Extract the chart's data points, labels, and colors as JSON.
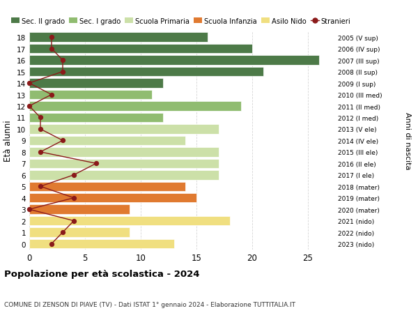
{
  "ages": [
    0,
    1,
    2,
    3,
    4,
    5,
    6,
    7,
    8,
    9,
    10,
    11,
    12,
    13,
    14,
    15,
    16,
    17,
    18
  ],
  "years": [
    "2023 (nido)",
    "2022 (nido)",
    "2021 (nido)",
    "2020 (mater)",
    "2019 (mater)",
    "2018 (mater)",
    "2017 (I ele)",
    "2016 (II ele)",
    "2015 (III ele)",
    "2014 (IV ele)",
    "2013 (V ele)",
    "2012 (I med)",
    "2011 (II med)",
    "2010 (III med)",
    "2009 (I sup)",
    "2008 (II sup)",
    "2007 (III sup)",
    "2006 (IV sup)",
    "2005 (V sup)"
  ],
  "bar_values": [
    13,
    9,
    18,
    9,
    15,
    14,
    17,
    17,
    17,
    14,
    17,
    12,
    19,
    11,
    12,
    21,
    26,
    20,
    16
  ],
  "bar_colors": [
    "#f0df80",
    "#f0df80",
    "#f0df80",
    "#e07a30",
    "#e07a30",
    "#e07a30",
    "#cce0a8",
    "#cce0a8",
    "#cce0a8",
    "#cce0a8",
    "#cce0a8",
    "#90bc70",
    "#90bc70",
    "#90bc70",
    "#4d7a48",
    "#4d7a48",
    "#4d7a48",
    "#4d7a48",
    "#4d7a48"
  ],
  "stranieri": [
    2,
    3,
    4,
    0,
    4,
    1,
    4,
    6,
    1,
    3,
    1,
    1,
    0,
    2,
    0,
    3,
    3,
    2,
    2
  ],
  "title": "Popolazione per età scolastica - 2024",
  "subtitle": "COMUNE DI ZENSON DI PIAVE (TV) - Dati ISTAT 1° gennaio 2024 - Elaborazione TUTTITALIA.IT",
  "ylabel": "Età alunni",
  "right_ylabel": "Anni di nascita",
  "xlim": [
    0,
    27
  ],
  "xticks": [
    0,
    5,
    10,
    15,
    20,
    25
  ],
  "legend_labels": [
    "Sec. II grado",
    "Sec. I grado",
    "Scuola Primaria",
    "Scuola Infanzia",
    "Asilo Nido",
    "Stranieri"
  ],
  "legend_colors": [
    "#4d7a48",
    "#90bc70",
    "#cce0a8",
    "#e07a30",
    "#f0df80",
    "#8b1a1a"
  ],
  "color_stranieri_line": "#8b1a1a",
  "color_stranieri_dot": "#8b1a1a",
  "grid_color": "#cccccc",
  "background_color": "#ffffff",
  "bar_height": 0.82
}
